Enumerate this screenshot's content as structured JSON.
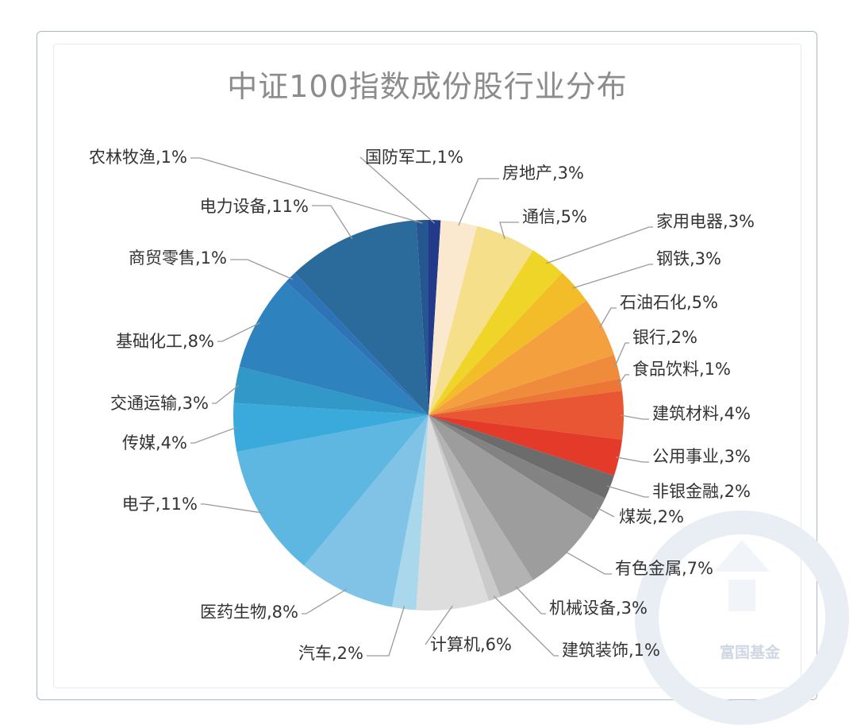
{
  "chart_data": {
    "type": "pie",
    "title": "中证100指数成份股行业分布",
    "watermark": "富国基金",
    "start_angle_deg": 0,
    "direction": "clockwise",
    "slices": [
      {
        "label": "国防军工,1%",
        "value": 1,
        "color": "#23398a"
      },
      {
        "label": "房地产,3%",
        "value": 3,
        "color": "#fbe9cf"
      },
      {
        "label": "通信,5%",
        "value": 5,
        "color": "#f6df8a"
      },
      {
        "label": "家用电器,3%",
        "value": 3,
        "color": "#eed527"
      },
      {
        "label": "钢铁,3%",
        "value": 3,
        "color": "#f3bd2a"
      },
      {
        "label": "石油石化,5%",
        "value": 5,
        "color": "#f4a03f"
      },
      {
        "label": "银行,2%",
        "value": 2,
        "color": "#ef8c3c"
      },
      {
        "label": "食品饮料,1%",
        "value": 1,
        "color": "#ec7636"
      },
      {
        "label": "建筑材料,4%",
        "value": 4,
        "color": "#e85633"
      },
      {
        "label": "公用事业,3%",
        "value": 3,
        "color": "#e33a2a"
      },
      {
        "label": "非银金融,2%",
        "value": 2,
        "color": "#6c6c6c"
      },
      {
        "label": "煤炭,2%",
        "value": 2,
        "color": "#838383"
      },
      {
        "label": "有色金属,7%",
        "value": 7,
        "color": "#9d9d9d"
      },
      {
        "label": "机械设备,3%",
        "value": 3,
        "color": "#b3b3b3"
      },
      {
        "label": "建筑装饰,1%",
        "value": 1,
        "color": "#cacaca"
      },
      {
        "label": "计算机,6%",
        "value": 6,
        "color": "#dddddd"
      },
      {
        "label": "汽车,2%",
        "value": 2,
        "color": "#a9d8ec"
      },
      {
        "label": "医药生物,8%",
        "value": 8,
        "color": "#80c3e6"
      },
      {
        "label": "电子,11%",
        "value": 11,
        "color": "#5db7e0"
      },
      {
        "label": "传媒,4%",
        "value": 4,
        "color": "#3aaadc"
      },
      {
        "label": "交通运输,3%",
        "value": 3,
        "color": "#3198c8"
      },
      {
        "label": "基础化工,8%",
        "value": 8,
        "color": "#2e83bf"
      },
      {
        "label": "商贸零售,1%",
        "value": 1,
        "color": "#2d73b6"
      },
      {
        "label": "电力设备,11%",
        "value": 11,
        "color": "#2b6b9c"
      },
      {
        "label": "农林牧渔,1%",
        "value": 1,
        "color": "#25568f"
      }
    ]
  }
}
